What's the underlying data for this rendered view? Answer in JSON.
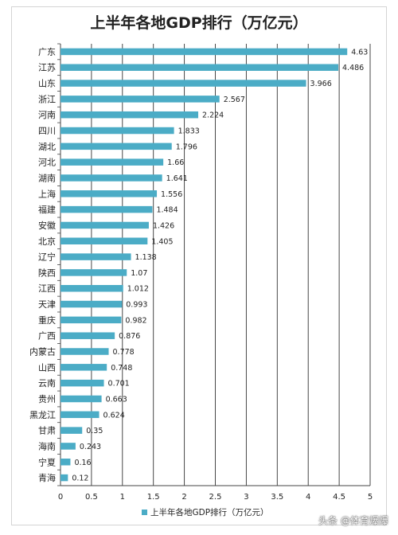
{
  "chart_data": {
    "type": "bar",
    "orientation": "horizontal",
    "title": "上半年各地GDP排行（万亿元）",
    "categories": [
      "广东",
      "江苏",
      "山东",
      "浙江",
      "河南",
      "四川",
      "湖北",
      "河北",
      "湖南",
      "上海",
      "福建",
      "安徽",
      "北京",
      "辽宁",
      "陕西",
      "江西",
      "天津",
      "重庆",
      "广西",
      "内蒙古",
      "山西",
      "云南",
      "贵州",
      "黑龙江",
      "甘肃",
      "海南",
      "宁夏",
      "青海"
    ],
    "values": [
      4.63,
      4.486,
      3.966,
      2.567,
      2.224,
      1.833,
      1.796,
      1.66,
      1.641,
      1.556,
      1.484,
      1.426,
      1.405,
      1.138,
      1.07,
      1.012,
      0.993,
      0.982,
      0.876,
      0.778,
      0.748,
      0.701,
      0.663,
      0.624,
      0.35,
      0.243,
      0.16,
      0.12
    ],
    "value_labels": [
      "4.63",
      "4.486",
      "3.966",
      "2.567",
      "2.224",
      "1.833",
      "1.796",
      "1.66",
      "1.641",
      "1.556",
      "1.484",
      "1.426",
      "1.405",
      "1.138",
      "1.07",
      "1.012",
      "0.993",
      "0.982",
      "0.876",
      "0.778",
      "0.748",
      "0.701",
      "0.663",
      "0.624",
      "0.35",
      "0.243",
      "0.16",
      "0.12"
    ],
    "series": [
      {
        "name": "上半年各地GDP排行（万亿元）"
      }
    ],
    "xlim": [
      0,
      5
    ],
    "xticks": [
      "0",
      "0.5",
      "1",
      "1.5",
      "2",
      "2.5",
      "3",
      "3.5",
      "4",
      "4.5",
      "5"
    ],
    "grid": true,
    "legend_position": "bottom",
    "bar_color": "#4bacc6"
  },
  "watermark": "头条 @体育爆爆"
}
